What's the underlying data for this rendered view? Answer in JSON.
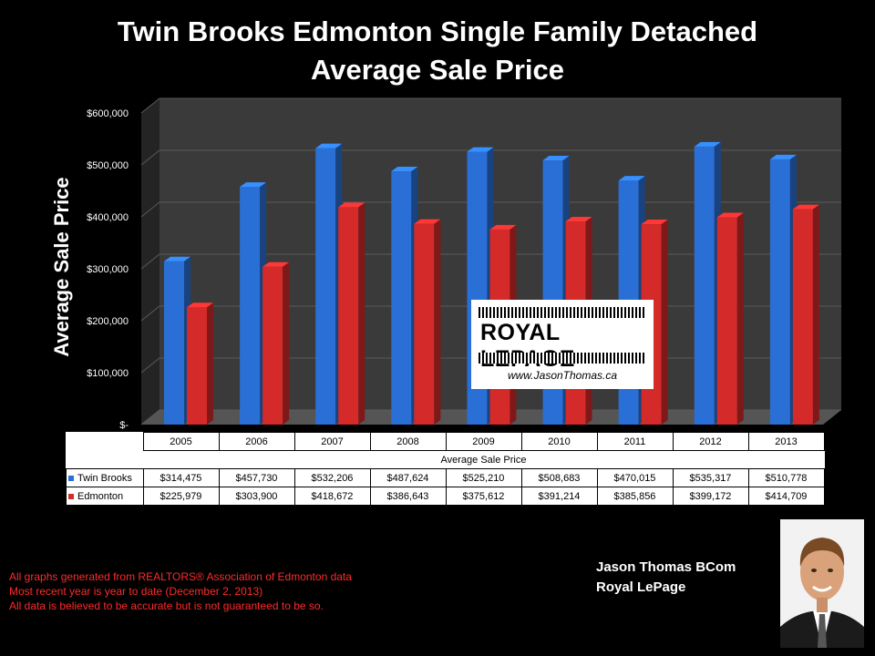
{
  "colors": {
    "twin_brooks": "#2a6fd6",
    "edmonton": "#d42a2a",
    "background": "#000000",
    "footer_text": "#ff2a2a"
  },
  "chart_data": {
    "type": "bar",
    "title": "Twin Brooks Edmonton Single Family Detached",
    "subtitle": "Average Sale Price",
    "ylabel": "Average Sale Price",
    "xlabel": "Average Sale Price",
    "ylim": [
      0,
      600000
    ],
    "y_ticks": [
      "$600,000",
      "$500,000",
      "$400,000",
      "$300,000",
      "$200,000",
      "$100,000",
      "$-"
    ],
    "categories": [
      "2005",
      "2006",
      "2007",
      "2008",
      "2009",
      "2010",
      "2011",
      "2012",
      "2013"
    ],
    "series": [
      {
        "name": "Twin Brooks",
        "color": "#2a6fd6",
        "values": [
          314475,
          457730,
          532206,
          487624,
          525210,
          508683,
          470015,
          535317,
          510778
        ],
        "labels": [
          "$314,475",
          "$457,730",
          "$532,206",
          "$487,624",
          "$525,210",
          "$508,683",
          "$470,015",
          "$535,317",
          "$510,778"
        ]
      },
      {
        "name": "Edmonton",
        "color": "#d42a2a",
        "values": [
          225979,
          303900,
          418672,
          386643,
          375612,
          391214,
          385856,
          399172,
          414709
        ],
        "labels": [
          "$225,979",
          "$303,900",
          "$418,672",
          "$386,643",
          "$375,612",
          "$391,214",
          "$385,856",
          "$399,172",
          "$414,709"
        ]
      }
    ],
    "grid": true,
    "legend": "data-table"
  },
  "logo": {
    "brand": "ROYAL LEPAGE",
    "url": "www.JasonThomas.ca"
  },
  "footer": [
    "All graphs generated from REALTORS® Association of Edmonton data",
    "Most recent year is year to date (December 2, 2013)",
    "All data is believed to be accurate but is not guaranteed to be so."
  ],
  "signature": {
    "name": "Jason Thomas BCom",
    "company": "Royal LePage"
  }
}
